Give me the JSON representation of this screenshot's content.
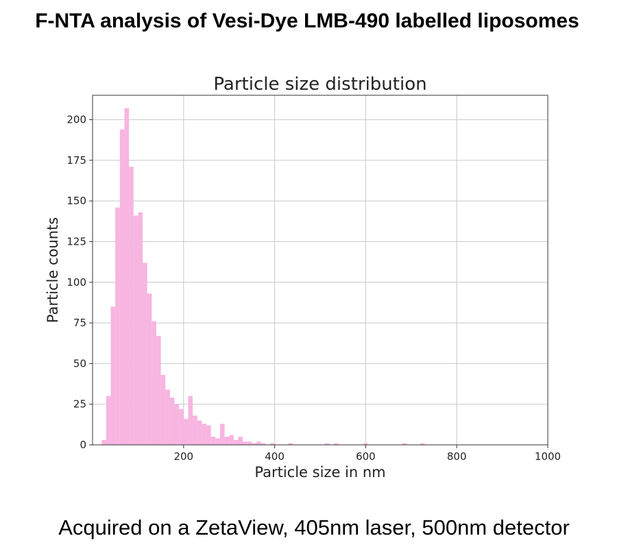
{
  "heading": "F-NTA analysis of Vesi-Dye LMB-490 labelled liposomes",
  "caption": "Acquired on a ZetaView, 405nm laser, 500nm detector",
  "colors": {
    "bar": "#f7b5e0",
    "grid": "#c8c8c8",
    "axis": "#333333"
  },
  "chart_data": {
    "type": "bar",
    "title": "Particle size distribution",
    "xlabel": "Particle size in nm",
    "ylabel": "Particle counts",
    "xlim": [
      0,
      1000
    ],
    "ylim": [
      0,
      215
    ],
    "xticks": [
      200,
      400,
      600,
      800,
      1000
    ],
    "yticks": [
      0,
      25,
      50,
      75,
      100,
      125,
      150,
      175,
      200
    ],
    "grid": true,
    "bin_width": 10,
    "bins": [
      {
        "x": 25,
        "y": 3
      },
      {
        "x": 35,
        "y": 30
      },
      {
        "x": 45,
        "y": 85
      },
      {
        "x": 55,
        "y": 146
      },
      {
        "x": 65,
        "y": 194
      },
      {
        "x": 75,
        "y": 207
      },
      {
        "x": 85,
        "y": 171
      },
      {
        "x": 95,
        "y": 141
      },
      {
        "x": 105,
        "y": 143
      },
      {
        "x": 115,
        "y": 112
      },
      {
        "x": 125,
        "y": 93
      },
      {
        "x": 135,
        "y": 76
      },
      {
        "x": 145,
        "y": 67
      },
      {
        "x": 155,
        "y": 43
      },
      {
        "x": 165,
        "y": 34
      },
      {
        "x": 175,
        "y": 29
      },
      {
        "x": 185,
        "y": 25
      },
      {
        "x": 195,
        "y": 22
      },
      {
        "x": 205,
        "y": 16
      },
      {
        "x": 215,
        "y": 30
      },
      {
        "x": 225,
        "y": 18
      },
      {
        "x": 235,
        "y": 15
      },
      {
        "x": 245,
        "y": 13
      },
      {
        "x": 255,
        "y": 12
      },
      {
        "x": 265,
        "y": 5
      },
      {
        "x": 275,
        "y": 4
      },
      {
        "x": 285,
        "y": 13
      },
      {
        "x": 295,
        "y": 5
      },
      {
        "x": 305,
        "y": 6
      },
      {
        "x": 315,
        "y": 3
      },
      {
        "x": 325,
        "y": 5
      },
      {
        "x": 335,
        "y": 2
      },
      {
        "x": 345,
        "y": 2
      },
      {
        "x": 355,
        "y": 1
      },
      {
        "x": 365,
        "y": 2
      },
      {
        "x": 375,
        "y": 1
      },
      {
        "x": 395,
        "y": 1
      },
      {
        "x": 435,
        "y": 1
      },
      {
        "x": 515,
        "y": 1
      },
      {
        "x": 535,
        "y": 1
      },
      {
        "x": 600,
        "y": 1
      },
      {
        "x": 685,
        "y": 1
      },
      {
        "x": 725,
        "y": 1
      }
    ]
  }
}
